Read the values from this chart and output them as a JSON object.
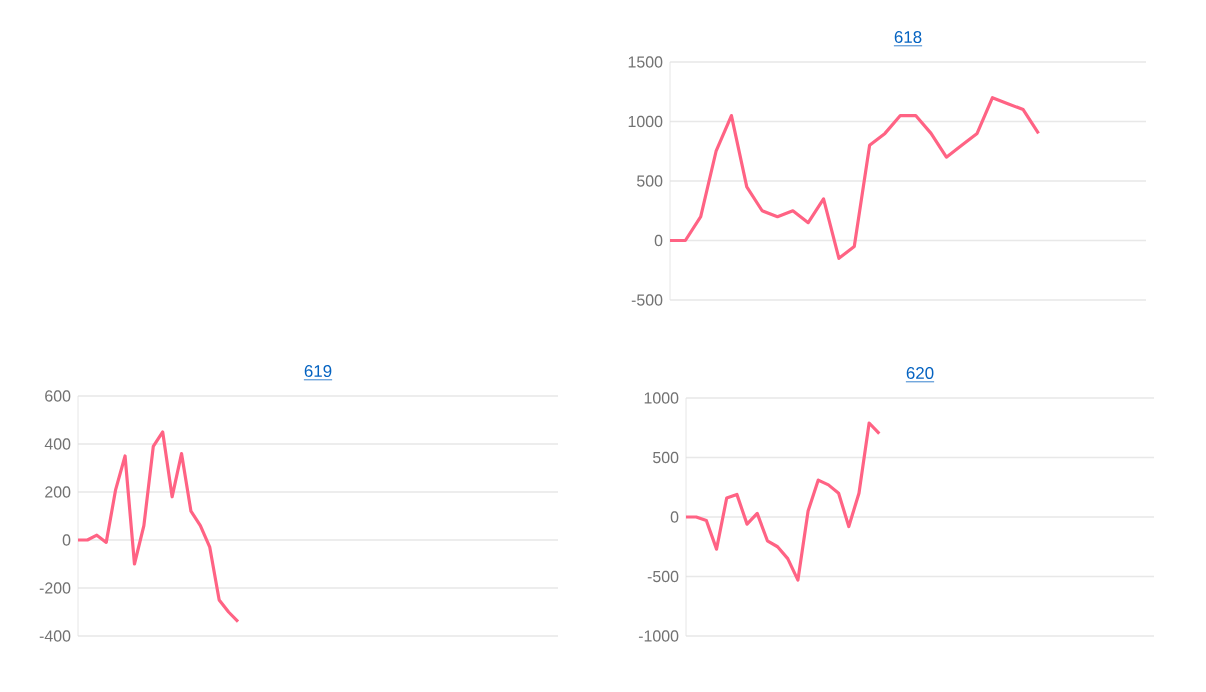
{
  "chart_data": [
    {
      "type": "line",
      "title": "618",
      "categories": [
        null,
        null,
        null,
        null,
        null,
        null,
        null,
        null,
        null,
        null,
        null,
        null,
        null,
        null,
        null,
        null,
        null,
        null,
        null,
        null,
        null,
        null,
        null,
        null,
        null,
        null,
        null,
        null,
        null,
        null,
        null,
        null
      ],
      "series": [
        {
          "color": "#ff6384",
          "values": [
            0,
            0,
            200,
            750,
            1050,
            450,
            250,
            200,
            250,
            150,
            350,
            -150,
            -50,
            800,
            900,
            1050,
            1050,
            900,
            700,
            800,
            900,
            1200,
            1150,
            1100,
            900,
            null,
            null,
            null,
            null,
            null,
            null,
            null
          ]
        }
      ],
      "ylim": [
        -500,
        1500
      ],
      "yticks": [
        -500,
        0,
        500,
        1000,
        1500
      ],
      "grid": "y",
      "tick_labels": "y",
      "marker": "none",
      "line_style": "solid"
    },
    {
      "type": "line",
      "title": "619",
      "categories": [
        null,
        null,
        null,
        null,
        null,
        null,
        null,
        null,
        null,
        null,
        null,
        null,
        null,
        null,
        null,
        null,
        null,
        null,
        null,
        null,
        null,
        null,
        null,
        null,
        null,
        null,
        null,
        null,
        null,
        null,
        null,
        null,
        null,
        null,
        null,
        null,
        null,
        null,
        null,
        null,
        null,
        null,
        null,
        null,
        null,
        null,
        null,
        null,
        null,
        null,
        null,
        null
      ],
      "series": [
        {
          "color": "#ff6384",
          "values": [
            0,
            0,
            20,
            -10,
            210,
            350,
            -100,
            60,
            390,
            450,
            180,
            360,
            120,
            60,
            -30,
            -250,
            -300,
            -340,
            null,
            null,
            null,
            null,
            null,
            null,
            null,
            null,
            null,
            null,
            null,
            null,
            null,
            null,
            null,
            null,
            null,
            null,
            null,
            null,
            null,
            null,
            null,
            null,
            null,
            null,
            null,
            null,
            null,
            null,
            null,
            null,
            null,
            null
          ]
        }
      ],
      "ylim": [
        -400,
        600
      ],
      "yticks": [
        -400,
        -200,
        0,
        200,
        400,
        600
      ],
      "grid": "y",
      "tick_labels": "y",
      "marker": "none",
      "line_style": "solid"
    },
    {
      "type": "line",
      "title": "620",
      "categories": [
        null,
        null,
        null,
        null,
        null,
        null,
        null,
        null,
        null,
        null,
        null,
        null,
        null,
        null,
        null,
        null,
        null,
        null,
        null,
        null,
        null,
        null,
        null,
        null,
        null,
        null,
        null,
        null,
        null,
        null,
        null,
        null,
        null,
        null,
        null,
        null,
        null,
        null,
        null,
        null,
        null,
        null,
        null,
        null,
        null,
        null,
        null
      ],
      "series": [
        {
          "color": "#ff6384",
          "values": [
            0,
            0,
            -30,
            -270,
            160,
            190,
            -60,
            30,
            -200,
            -250,
            -350,
            -530,
            50,
            310,
            270,
            200,
            -80,
            200,
            790,
            700,
            null,
            null,
            null,
            null,
            null,
            null,
            null,
            null,
            null,
            null,
            null,
            null,
            null,
            null,
            null,
            null,
            null,
            null,
            null,
            null,
            null,
            null,
            null,
            null,
            null,
            null,
            null
          ]
        }
      ],
      "ylim": [
        -1000,
        1000
      ],
      "yticks": [
        -1000,
        -500,
        0,
        500,
        1000
      ],
      "grid": "y",
      "tick_labels": "y",
      "marker": "none",
      "line_style": "solid"
    }
  ]
}
